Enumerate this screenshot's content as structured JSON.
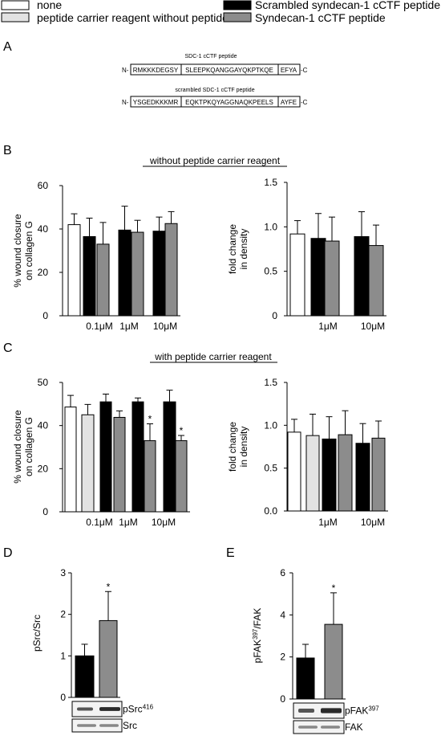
{
  "legend": {
    "items": [
      {
        "label": "none",
        "color": "#ffffff"
      },
      {
        "label": "peptide carrier reagent without peptide",
        "color": "#e2e2e2"
      },
      {
        "label": "Scrambled syndecan-1 cCTF peptide",
        "color": "#000000"
      },
      {
        "label": "Syndecan-1 cCTF peptide",
        "color": "#8c8c8c"
      }
    ]
  },
  "panel_labels": {
    "a": "A",
    "b": "B",
    "c": "C",
    "d": "D",
    "e": "E"
  },
  "sequences": {
    "sdc": {
      "title": "SDC-1 cCTF peptide",
      "n": "N-",
      "c": "-C",
      "segments": [
        "RMKKKDEGSY",
        "SLEEPKQANGGAYQKPTKQE",
        "EFYA"
      ]
    },
    "scrambled": {
      "title": "scrambled SDC-1 cCTF peptide",
      "n": "N-",
      "c": "-C",
      "segments": [
        "YSGEDKKKMR",
        "EQKTPKQYAGGNAQKPEELS",
        "AYFE"
      ]
    }
  },
  "sections": {
    "b_title": "without  peptide carrier reagent",
    "c_title": "with peptide carrier reagent"
  },
  "chart_data": [
    {
      "id": "B-left",
      "type": "bar",
      "ylabel": [
        "% wound closure",
        "on collagen G"
      ],
      "ylim": [
        0,
        60
      ],
      "yticks": [
        "0",
        "20",
        "40",
        "60"
      ],
      "xlabels": [
        "0.1μM",
        "1μM",
        "10μM"
      ],
      "bars": [
        {
          "series": "none",
          "value": 42,
          "err": 5
        },
        {
          "series": "Scrambled syndecan-1 cCTF peptide",
          "value": 36.5,
          "err": 8.5
        },
        {
          "series": "Syndecan-1 cCTF peptide",
          "value": 33,
          "err": 10
        },
        {
          "series": "Scrambled syndecan-1 cCTF peptide",
          "value": 39.5,
          "err": 11
        },
        {
          "series": "Syndecan-1 cCTF peptide",
          "value": 38.5,
          "err": 5.5
        },
        {
          "series": "Scrambled syndecan-1 cCTF peptide",
          "value": 39,
          "err": 6.5
        },
        {
          "series": "Syndecan-1 cCTF peptide",
          "value": 42.5,
          "err": 5.5
        }
      ]
    },
    {
      "id": "B-right",
      "type": "bar",
      "ylabel": [
        "fold change",
        "in density"
      ],
      "ylim": [
        0,
        1.5
      ],
      "yticks": [
        "0",
        "0.5",
        "1.0",
        "1.5"
      ],
      "xlabels": [
        "1μM",
        "10μM"
      ],
      "bars": [
        {
          "series": "none",
          "value": 0.92,
          "err": 0.15
        },
        {
          "series": "Scrambled syndecan-1 cCTF peptide",
          "value": 0.87,
          "err": 0.28
        },
        {
          "series": "Syndecan-1 cCTF peptide",
          "value": 0.84,
          "err": 0.27
        },
        {
          "series": "Scrambled syndecan-1 cCTF peptide",
          "value": 0.89,
          "err": 0.28
        },
        {
          "series": "Syndecan-1 cCTF peptide",
          "value": 0.79,
          "err": 0.23
        }
      ]
    },
    {
      "id": "C-left",
      "type": "bar",
      "ylabel": [
        "% wound closure",
        "on collagen G"
      ],
      "ylim": [
        0,
        50
      ],
      "yticks": [
        "0",
        "20",
        "40",
        "50"
      ],
      "xlabels": [
        "0.1μM",
        "1μM",
        "10μM"
      ],
      "bars": [
        {
          "series": "none",
          "value": 40.5,
          "err": 4.5
        },
        {
          "series": "peptide carrier reagent without peptide",
          "value": 37.5,
          "err": 4
        },
        {
          "series": "Scrambled syndecan-1 cCTF peptide",
          "value": 42.5,
          "err": 3
        },
        {
          "series": "Syndecan-1 cCTF peptide",
          "value": 36.5,
          "err": 2.5
        },
        {
          "series": "Scrambled syndecan-1 cCTF peptide",
          "value": 42.5,
          "err": 1.5
        },
        {
          "series": "Syndecan-1 cCTF peptide",
          "value": 27.5,
          "err": 6.5,
          "star": "*"
        },
        {
          "series": "Scrambled syndecan-1 cCTF peptide",
          "value": 42.5,
          "err": 4.5
        },
        {
          "series": "Syndecan-1 cCTF peptide",
          "value": 27.5,
          "err": 2,
          "star": "*"
        }
      ]
    },
    {
      "id": "C-right",
      "type": "bar",
      "ylabel": [
        "fold change",
        "in density"
      ],
      "ylim": [
        0,
        1.5
      ],
      "yticks": [
        "0.0",
        "0.5",
        "1.0",
        "1.5"
      ],
      "xlabels": [
        "1μM",
        "10μM"
      ],
      "bars": [
        {
          "series": "none",
          "value": 0.92,
          "err": 0.15
        },
        {
          "series": "peptide carrier reagent without peptide",
          "value": 0.88,
          "err": 0.25
        },
        {
          "series": "Scrambled syndecan-1 cCTF peptide",
          "value": 0.84,
          "err": 0.26
        },
        {
          "series": "Syndecan-1 cCTF peptide",
          "value": 0.89,
          "err": 0.28
        },
        {
          "series": "Scrambled syndecan-1 cCTF peptide",
          "value": 0.79,
          "err": 0.23
        },
        {
          "series": "Syndecan-1 cCTF peptide",
          "value": 0.85,
          "err": 0.2
        }
      ]
    },
    {
      "id": "D",
      "type": "bar",
      "ylabel": [
        "pSrc/Src"
      ],
      "ylim": [
        0,
        3
      ],
      "yticks": [
        "0",
        "1",
        "2",
        "3"
      ],
      "bars": [
        {
          "series": "Scrambled syndecan-1 cCTF peptide",
          "value": 1.0,
          "err": 0.28
        },
        {
          "series": "Syndecan-1 cCTF peptide",
          "value": 1.85,
          "err": 0.7,
          "star": "*"
        }
      ],
      "blots": [
        {
          "label": "pSrc",
          "sup": "416"
        },
        {
          "label": "Src",
          "sup": ""
        }
      ]
    },
    {
      "id": "E",
      "type": "bar",
      "ylabel": [
        "pFAK",
        "397",
        "/FAK"
      ],
      "ylim": [
        0,
        6
      ],
      "yticks": [
        "0",
        "2",
        "4",
        "6"
      ],
      "bars": [
        {
          "series": "Scrambled syndecan-1 cCTF peptide",
          "value": 1.95,
          "err": 0.65
        },
        {
          "series": "Syndecan-1 cCTF peptide",
          "value": 3.55,
          "err": 1.5,
          "star": "*"
        }
      ],
      "blots": [
        {
          "label": "pFAK",
          "sup": "397"
        },
        {
          "label": "FAK",
          "sup": ""
        }
      ]
    }
  ]
}
